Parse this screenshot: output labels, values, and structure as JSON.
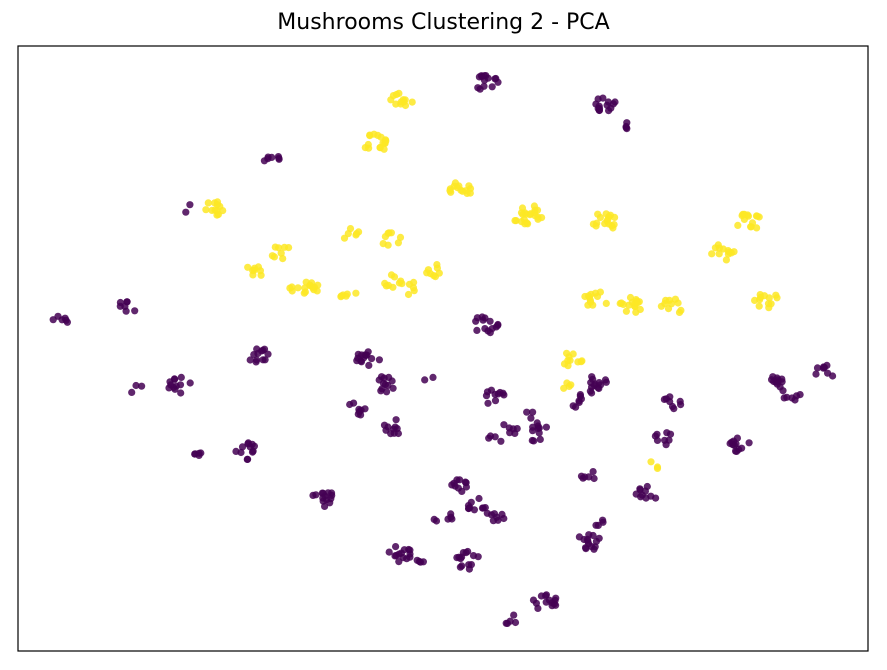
{
  "chart_data": {
    "type": "scatter",
    "title": "Mushrooms Clustering 2 - PCA",
    "xlabel": "",
    "ylabel": "",
    "axes_ticks": "hidden",
    "grid": false,
    "colors": {
      "cluster_0": "#440154",
      "cluster_1": "#fde725"
    },
    "series": [
      {
        "color": "#440154",
        "clusters": [
          {
            "x": 0.55,
            "y": 0.94,
            "n": 14
          },
          {
            "x": 0.69,
            "y": 0.9,
            "n": 14
          },
          {
            "x": 0.72,
            "y": 0.87,
            "n": 4
          },
          {
            "x": 0.3,
            "y": 0.81,
            "n": 7
          },
          {
            "x": 0.2,
            "y": 0.73,
            "n": 2
          },
          {
            "x": 0.05,
            "y": 0.55,
            "n": 6
          },
          {
            "x": 0.12,
            "y": 0.57,
            "n": 6
          },
          {
            "x": 0.14,
            "y": 0.56,
            "n": 1
          },
          {
            "x": 0.55,
            "y": 0.54,
            "n": 14
          },
          {
            "x": 0.28,
            "y": 0.49,
            "n": 12
          },
          {
            "x": 0.41,
            "y": 0.48,
            "n": 14
          },
          {
            "x": 0.43,
            "y": 0.44,
            "n": 12
          },
          {
            "x": 0.4,
            "y": 0.4,
            "n": 8
          },
          {
            "x": 0.44,
            "y": 0.37,
            "n": 10
          },
          {
            "x": 0.19,
            "y": 0.44,
            "n": 12
          },
          {
            "x": 0.14,
            "y": 0.43,
            "n": 3
          },
          {
            "x": 0.48,
            "y": 0.45,
            "n": 2
          },
          {
            "x": 0.56,
            "y": 0.42,
            "n": 10
          },
          {
            "x": 0.68,
            "y": 0.44,
            "n": 14
          },
          {
            "x": 0.66,
            "y": 0.41,
            "n": 3
          },
          {
            "x": 0.77,
            "y": 0.41,
            "n": 8
          },
          {
            "x": 0.66,
            "y": 0.42,
            "n": 2
          },
          {
            "x": 0.89,
            "y": 0.44,
            "n": 12
          },
          {
            "x": 0.91,
            "y": 0.42,
            "n": 6
          },
          {
            "x": 0.95,
            "y": 0.46,
            "n": 8
          },
          {
            "x": 0.56,
            "y": 0.35,
            "n": 4
          },
          {
            "x": 0.61,
            "y": 0.37,
            "n": 8
          },
          {
            "x": 0.66,
            "y": 0.41,
            "n": 2
          },
          {
            "x": 0.27,
            "y": 0.33,
            "n": 12
          },
          {
            "x": 0.21,
            "y": 0.32,
            "n": 5
          },
          {
            "x": 0.76,
            "y": 0.35,
            "n": 8
          },
          {
            "x": 0.85,
            "y": 0.34,
            "n": 12
          },
          {
            "x": 0.67,
            "y": 0.29,
            "n": 6
          },
          {
            "x": 0.74,
            "y": 0.26,
            "n": 10
          },
          {
            "x": 0.36,
            "y": 0.25,
            "n": 14
          },
          {
            "x": 0.52,
            "y": 0.27,
            "n": 10
          },
          {
            "x": 0.54,
            "y": 0.24,
            "n": 10
          },
          {
            "x": 0.5,
            "y": 0.22,
            "n": 6
          },
          {
            "x": 0.56,
            "y": 0.22,
            "n": 8
          },
          {
            "x": 0.67,
            "y": 0.18,
            "n": 14
          },
          {
            "x": 0.69,
            "y": 0.21,
            "n": 4
          },
          {
            "x": 0.45,
            "y": 0.16,
            "n": 14
          },
          {
            "x": 0.47,
            "y": 0.15,
            "n": 4
          },
          {
            "x": 0.53,
            "y": 0.15,
            "n": 14
          },
          {
            "x": 0.62,
            "y": 0.08,
            "n": 14
          },
          {
            "x": 0.58,
            "y": 0.05,
            "n": 5
          },
          {
            "x": 0.58,
            "y": 0.37,
            "n": 6
          },
          {
            "x": 0.6,
            "y": 0.39,
            "n": 3
          },
          {
            "x": 0.61,
            "y": 0.35,
            "n": 3
          }
        ]
      },
      {
        "color": "#fde725",
        "clusters": [
          {
            "x": 0.45,
            "y": 0.91,
            "n": 12
          },
          {
            "x": 0.42,
            "y": 0.84,
            "n": 16
          },
          {
            "x": 0.23,
            "y": 0.73,
            "n": 12
          },
          {
            "x": 0.52,
            "y": 0.76,
            "n": 14
          },
          {
            "x": 0.6,
            "y": 0.72,
            "n": 22
          },
          {
            "x": 0.69,
            "y": 0.71,
            "n": 16
          },
          {
            "x": 0.86,
            "y": 0.71,
            "n": 14
          },
          {
            "x": 0.83,
            "y": 0.66,
            "n": 12
          },
          {
            "x": 0.31,
            "y": 0.66,
            "n": 8
          },
          {
            "x": 0.39,
            "y": 0.69,
            "n": 6
          },
          {
            "x": 0.44,
            "y": 0.68,
            "n": 8
          },
          {
            "x": 0.28,
            "y": 0.63,
            "n": 8
          },
          {
            "x": 0.34,
            "y": 0.6,
            "n": 10
          },
          {
            "x": 0.44,
            "y": 0.61,
            "n": 8
          },
          {
            "x": 0.49,
            "y": 0.63,
            "n": 8
          },
          {
            "x": 0.33,
            "y": 0.6,
            "n": 6
          },
          {
            "x": 0.39,
            "y": 0.59,
            "n": 6
          },
          {
            "x": 0.46,
            "y": 0.6,
            "n": 6
          },
          {
            "x": 0.68,
            "y": 0.58,
            "n": 12
          },
          {
            "x": 0.72,
            "y": 0.57,
            "n": 16
          },
          {
            "x": 0.77,
            "y": 0.57,
            "n": 10
          },
          {
            "x": 0.88,
            "y": 0.58,
            "n": 12
          },
          {
            "x": 0.65,
            "y": 0.48,
            "n": 10
          },
          {
            "x": 0.64,
            "y": 0.44,
            "n": 4
          },
          {
            "x": 0.75,
            "y": 0.31,
            "n": 3
          }
        ]
      }
    ]
  }
}
